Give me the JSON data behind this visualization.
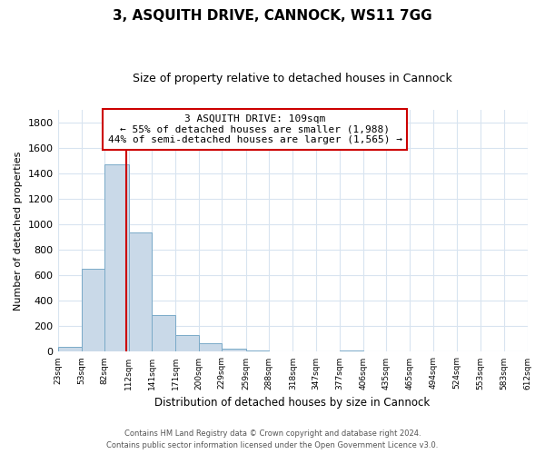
{
  "title": "3, ASQUITH DRIVE, CANNOCK, WS11 7GG",
  "subtitle": "Size of property relative to detached houses in Cannock",
  "xlabel": "Distribution of detached houses by size in Cannock",
  "ylabel": "Number of detached properties",
  "bar_edges": [
    23,
    53,
    82,
    112,
    141,
    171,
    200,
    229,
    259,
    288,
    318,
    347,
    377,
    406,
    435,
    465,
    494,
    524,
    553,
    583,
    612
  ],
  "bar_heights": [
    40,
    650,
    1470,
    935,
    290,
    130,
    65,
    25,
    10,
    0,
    0,
    0,
    10,
    0,
    0,
    0,
    0,
    0,
    0,
    0
  ],
  "bar_color": "#c9d9e8",
  "bar_edge_color": "#7aaac8",
  "vline_x": 109,
  "vline_color": "#cc0000",
  "ylim": [
    0,
    1900
  ],
  "yticks": [
    0,
    200,
    400,
    600,
    800,
    1000,
    1200,
    1400,
    1600,
    1800
  ],
  "annotation_line1": "3 ASQUITH DRIVE: 109sqm",
  "annotation_line2": "← 55% of detached houses are smaller (1,988)",
  "annotation_line3": "44% of semi-detached houses are larger (1,565) →",
  "footer_line1": "Contains HM Land Registry data © Crown copyright and database right 2024.",
  "footer_line2": "Contains public sector information licensed under the Open Government Licence v3.0.",
  "tick_labels": [
    "23sqm",
    "53sqm",
    "82sqm",
    "112sqm",
    "141sqm",
    "171sqm",
    "200sqm",
    "229sqm",
    "259sqm",
    "288sqm",
    "318sqm",
    "347sqm",
    "377sqm",
    "406sqm",
    "435sqm",
    "465sqm",
    "494sqm",
    "524sqm",
    "553sqm",
    "583sqm",
    "612sqm"
  ],
  "grid_color": "#d8e4f0",
  "bg_color": "#ffffff"
}
